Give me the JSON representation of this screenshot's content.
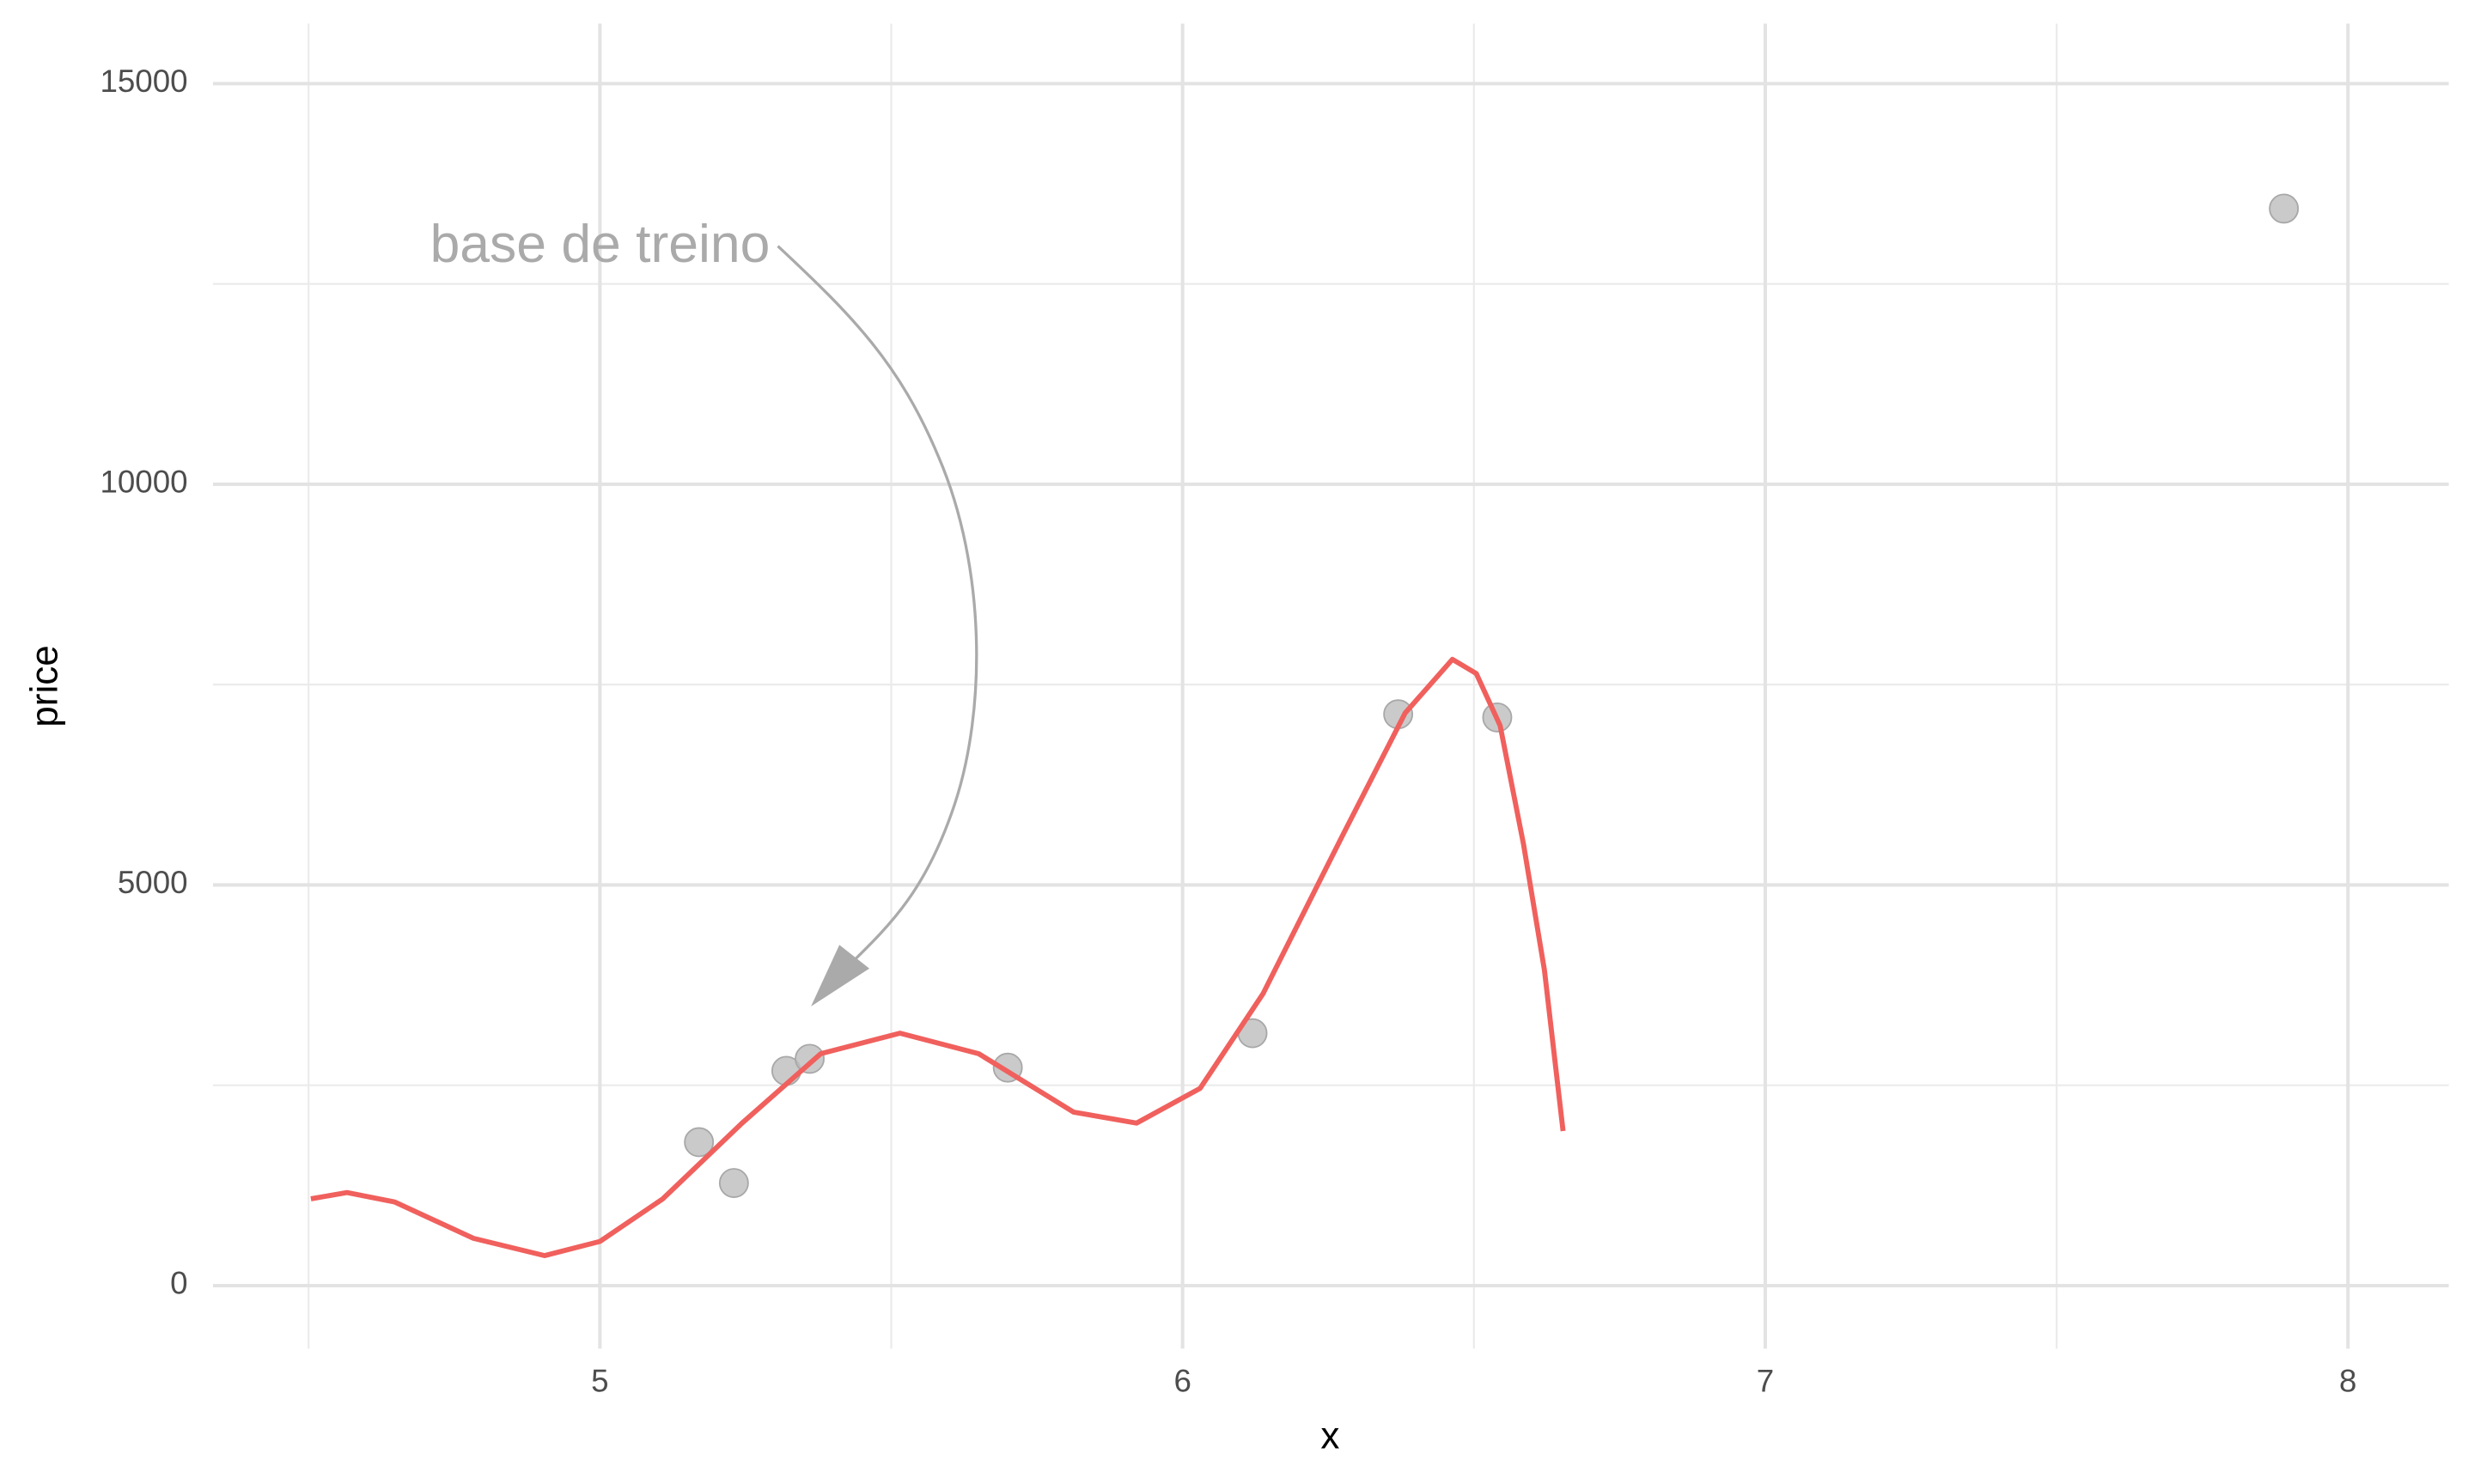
{
  "chart_data": {
    "type": "scatter",
    "x_label": "x",
    "y_label": "price",
    "annotation": "base de treino",
    "xlim": [
      4.336,
      8.173
    ],
    "ylim": [
      -787,
      15748
    ],
    "xticks": [
      5,
      6,
      7,
      8
    ],
    "yticks": [
      0,
      5000,
      10000,
      15000
    ],
    "x_minor_ticks": [
      4.5,
      5.5,
      6.5,
      7.5
    ],
    "y_minor_ticks": [
      2500,
      7500,
      12500
    ],
    "grid": true,
    "series": [
      {
        "type": "scatter",
        "color": "#bdbdbd",
        "x": [
          5.17,
          5.23,
          5.32,
          5.36,
          5.7,
          6.12,
          6.37,
          6.54,
          7.89
        ],
        "values": [
          1790,
          1280,
          2680,
          2830,
          2720,
          3150,
          7130,
          7090,
          13440
        ]
      },
      {
        "type": "line",
        "color": "#f0605d",
        "x": [
          4.504,
          4.566,
          4.648,
          4.783,
          4.905,
          5.0,
          5.108,
          5.244,
          5.379,
          5.515,
          5.65,
          5.813,
          5.921,
          6.03,
          6.138,
          6.274,
          6.382,
          6.463,
          6.504,
          6.545,
          6.585,
          6.621,
          6.653
        ],
        "values": [
          1083,
          1161,
          1043,
          590,
          374,
          551,
          1083,
          2028,
          2894,
          3150,
          2894,
          2165,
          2028,
          2461,
          3642,
          5610,
          7146,
          7815,
          7638,
          6988,
          5512,
          3937,
          1929
        ]
      }
    ]
  }
}
